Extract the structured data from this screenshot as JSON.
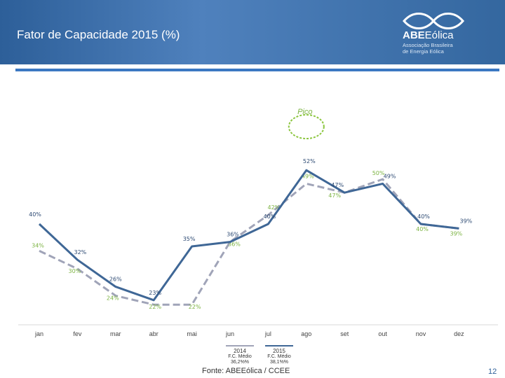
{
  "slide": {
    "title": "Fator de Capacidade 2015 (%)",
    "source": "Fonte: ABEEólica / CCEE",
    "page_number": "12"
  },
  "logo": {
    "name_bold": "ABE",
    "name_regular": "Eólica",
    "subtitle_line1": "Associação Brasileira",
    "subtitle_line2": "de Energia Eólica"
  },
  "legend": {
    "item_2014": {
      "label": "2014",
      "caption": "F.C. Médio",
      "value": "36,2%%"
    },
    "item_2015": {
      "label": "2015",
      "caption": "F.C. Médio",
      "value": "38,1%%"
    }
  },
  "chart_data": {
    "type": "line",
    "categories": [
      "jan",
      "fev",
      "mar",
      "abr",
      "mai",
      "jun",
      "jul",
      "ago",
      "set",
      "out",
      "nov",
      "dez"
    ],
    "series": [
      {
        "name": "2014",
        "values": [
          34,
          30,
          24,
          22,
          22,
          36,
          42,
          49,
          47,
          50,
          40,
          39
        ],
        "labels": [
          "34%",
          "30%",
          "24%",
          "22%",
          "22%",
          "36%",
          "42%",
          "49%",
          "47%",
          "50%",
          "40%",
          "39%"
        ],
        "color": "#a0a4b8",
        "style": "dashed"
      },
      {
        "name": "2015",
        "values": [
          40,
          32,
          26,
          23,
          35,
          36,
          40,
          52,
          47,
          49,
          40,
          39
        ],
        "labels": [
          "40%",
          "32%",
          "26%",
          "23%",
          "35%",
          "36%",
          "40%",
          "52%",
          "47%",
          "49%",
          "40%",
          "39%"
        ],
        "color": "#3f6796",
        "style": "solid"
      }
    ],
    "annotation": {
      "text": "Pico",
      "category": "ago",
      "series": "2015"
    },
    "title": "",
    "xlabel": "",
    "ylabel": "",
    "grid": false
  }
}
